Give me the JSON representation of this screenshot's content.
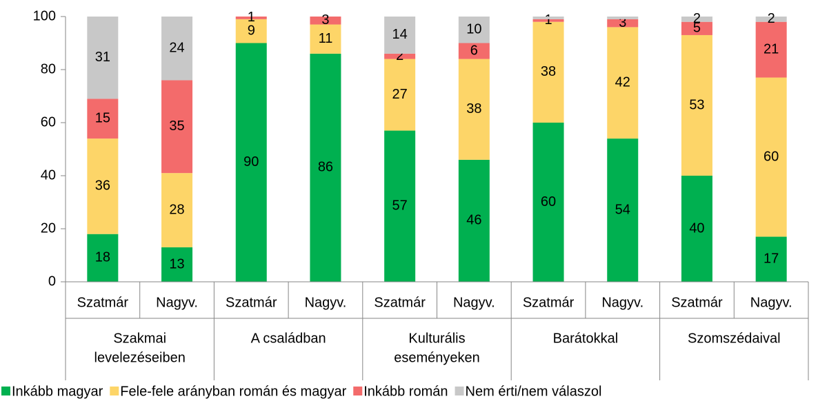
{
  "chart_data": {
    "type": "stacked_bar",
    "categories": [
      "Szatmár",
      "Nagyv.",
      "Szatmár",
      "Nagyv.",
      "Szatmár",
      "Nagyv.",
      "Szatmár",
      "Nagyv.",
      "Szatmár",
      "Nagyv."
    ],
    "groups": [
      [
        "Szakmai",
        "levelezéseiben"
      ],
      [
        "A családban"
      ],
      [
        "Kulturális",
        "eseményeken"
      ],
      [
        "Barátokkal"
      ],
      [
        "Szomszédaival"
      ]
    ],
    "series": [
      {
        "name": "Inkább magyar",
        "color": "#00b050",
        "values": [
          18,
          13,
          90,
          86,
          57,
          46,
          60,
          54,
          40,
          17
        ]
      },
      {
        "name": "Fele-fele arányban román és magyar",
        "color": "#fdd568",
        "values": [
          36,
          28,
          9,
          11,
          27,
          38,
          38,
          42,
          53,
          60
        ]
      },
      {
        "name": "Inkább román",
        "color": "#f36b6b",
        "values": [
          15,
          35,
          1,
          3,
          2,
          6,
          1,
          3,
          5,
          21
        ]
      },
      {
        "name": "Nem érti/nem válaszol",
        "color": "#c8c8c8",
        "values": [
          31,
          24,
          0,
          0,
          14,
          10,
          1,
          1,
          2,
          2
        ],
        "value_labels": [
          "31",
          "24",
          null,
          null,
          "14",
          "10",
          null,
          null,
          "2",
          "2"
        ]
      }
    ],
    "ylim": [
      0,
      100
    ],
    "yticks": [
      0,
      20,
      40,
      60,
      80,
      100
    ],
    "grid": false,
    "legend": "bottom"
  }
}
